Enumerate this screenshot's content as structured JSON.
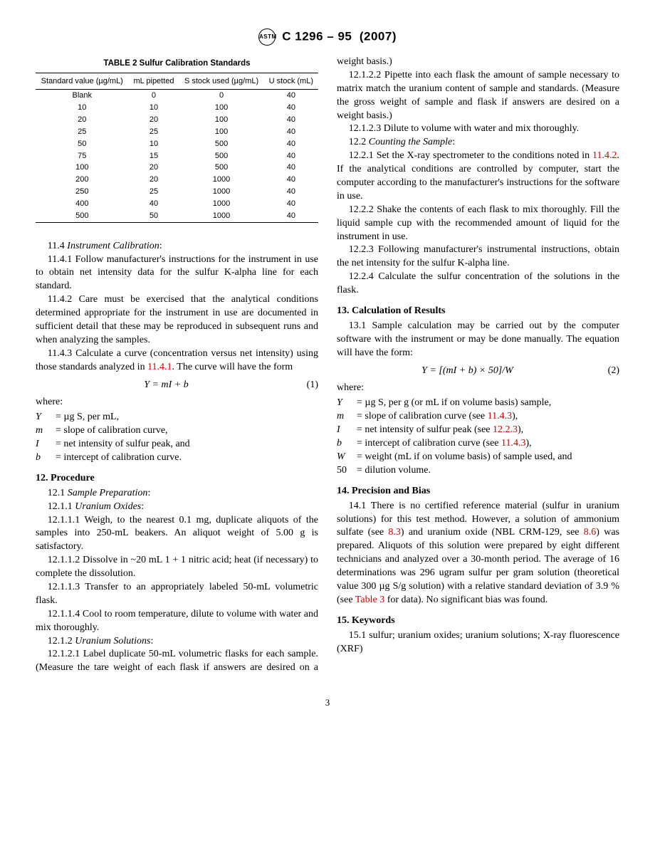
{
  "header": {
    "designation": "C 1296 – 95",
    "year": "(2007)"
  },
  "table": {
    "title": "TABLE 2  Sulfur Calibration Standards",
    "columns": [
      "Standard value (µg/mL)",
      "mL pipetted",
      "S stock used (µg/mL)",
      "U stock (mL)"
    ],
    "rows": [
      [
        "Blank",
        "0",
        "0",
        "40"
      ],
      [
        "10",
        "10",
        "100",
        "40"
      ],
      [
        "20",
        "20",
        "100",
        "40"
      ],
      [
        "25",
        "25",
        "100",
        "40"
      ],
      [
        "50",
        "10",
        "500",
        "40"
      ],
      [
        "75",
        "15",
        "500",
        "40"
      ],
      [
        "100",
        "20",
        "500",
        "40"
      ],
      [
        "200",
        "20",
        "1000",
        "40"
      ],
      [
        "250",
        "25",
        "1000",
        "40"
      ],
      [
        "400",
        "40",
        "1000",
        "40"
      ],
      [
        "500",
        "50",
        "1000",
        "40"
      ]
    ]
  },
  "text": {
    "s11_4": "11.4 ",
    "s11_4_title": "Instrument Calibration",
    "s11_4_1": "11.4.1 Follow manufacturer's instructions for the instrument in use to obtain net intensity data for the sulfur K-alpha line for each standard.",
    "s11_4_2": "11.4.2 Care must be exercised that the analytical conditions determined appropriate for the instrument in use are documented in sufficient detail that these may be reproduced in subsequent runs and when analyzing the samples.",
    "s11_4_3a": "11.4.3 Calculate a curve (concentration versus net intensity) using those standards analyzed in ",
    "s11_4_3_link": "11.4.1",
    "s11_4_3b": ". The curve will have the form",
    "eq1": "Y = mI + b",
    "eq1_num": "(1)",
    "where": "where:",
    "w_Y": "Y",
    "w_Y_def": "= µg S, per mL,",
    "w_m": "m",
    "w_m_def": "= slope of calibration curve,",
    "w_I": "I",
    "w_I_def": "= net intensity of sulfur peak, and",
    "w_b": "b",
    "w_b_def": "= intercept of calibration curve.",
    "s12": "12.  Procedure",
    "s12_1": "12.1 ",
    "s12_1_title": "Sample Preparation",
    "s12_1_1": "12.1.1 ",
    "s12_1_1_title": "Uranium Oxides",
    "s12_1_1_1": "12.1.1.1 Weigh, to the nearest 0.1 mg, duplicate aliquots of the samples into 250-mL beakers. An aliquot weight of 5.00 g is satisfactory.",
    "s12_1_1_2": "12.1.1.2 Dissolve in ~20 mL 1 + 1 nitric acid; heat (if necessary) to complete the dissolution.",
    "s12_1_1_3": "12.1.1.3 Transfer to an appropriately labeled 50-mL volumetric flask.",
    "s12_1_1_4": "12.1.1.4 Cool to room temperature, dilute to volume with water and mix thoroughly.",
    "s12_1_2": "12.1.2 ",
    "s12_1_2_title": "Uranium Solutions",
    "s12_1_2_1": "12.1.2.1 Label duplicate 50-mL volumetric flasks for each sample. (Measure the tare weight of each flask if answers are desired on a weight basis.)",
    "s12_1_2_2": "12.1.2.2 Pipette into each flask the amount of sample necessary to matrix match the uranium content of sample and standards. (Measure the gross weight of sample and flask if answers are desired on a weight basis.)",
    "s12_1_2_3": "12.1.2.3 Dilute to volume with water and mix thoroughly.",
    "s12_2": "12.2 ",
    "s12_2_title": "Counting the Sample",
    "s12_2_1a": "12.2.1 Set the X-ray spectrometer to the conditions noted in ",
    "s12_2_1_link": "11.4.2",
    "s12_2_1b": ". If the analytical conditions are controlled by computer, start the computer according to the manufacturer's instructions for the software in use.",
    "s12_2_2": "12.2.2 Shake the contents of each flask to mix thoroughly. Fill the liquid sample cup with the recommended amount of liquid for the instrument in use.",
    "s12_2_3": "12.2.3 Following manufacturer's instrumental instructions, obtain the net intensity for the sulfur K-alpha line.",
    "s12_2_4": "12.2.4 Calculate the sulfur concentration of the solutions in the flask.",
    "s13": "13.  Calculation of Results",
    "s13_1": "13.1 Sample calculation may be carried out by the computer software with the instrument or may be done manually. The equation will have the form:",
    "eq2": "Y = [(mI + b) × 50]/W",
    "eq2_num": "(2)",
    "w2_Y": "Y",
    "w2_Y_def_a": "= µg S, per g (or mL if on volume basis) sample,",
    "w2_m": "m",
    "w2_m_def_a": "= slope of calibration curve (see ",
    "w2_m_link": "11.4.3",
    "w2_m_def_b": "),",
    "w2_I": "I",
    "w2_I_def_a": "= net intensity of sulfur peak (see ",
    "w2_I_link": "12.2.3",
    "w2_I_def_b": "),",
    "w2_b": "b",
    "w2_b_def_a": "= intercept of calibration curve (see ",
    "w2_b_link": "11.4.3",
    "w2_b_def_b": "),",
    "w2_W": "W",
    "w2_W_def": "= weight (mL if on volume basis) of sample used, and",
    "w2_50": "50",
    "w2_50_def": "= dilution volume.",
    "s14": "14.  Precision and Bias",
    "s14_1a": "14.1 There is no certified reference material (sulfur in uranium solutions) for this test method. However, a solution of ammonium sulfate (see ",
    "s14_1_link1": "8.3",
    "s14_1b": ") and uranium oxide (NBL CRM-129, see ",
    "s14_1_link2": "8.6",
    "s14_1c": ") was prepared. Aliquots of this solution were prepared by eight different technicians and analyzed over a 30-month period. The average of 16 determinations was 296 ugram sulfur per gram solution (theoretical value 300 µg S/g solution) with a relative standard deviation of 3.9 % (see ",
    "s14_1_link3": "Table 3",
    "s14_1d": " for data). No significant bias was found.",
    "s15": "15.  Keywords",
    "s15_1": "15.1 sulfur; uranium oxides; uranium solutions; X-ray fluorescence (XRF)",
    "page": "3"
  }
}
